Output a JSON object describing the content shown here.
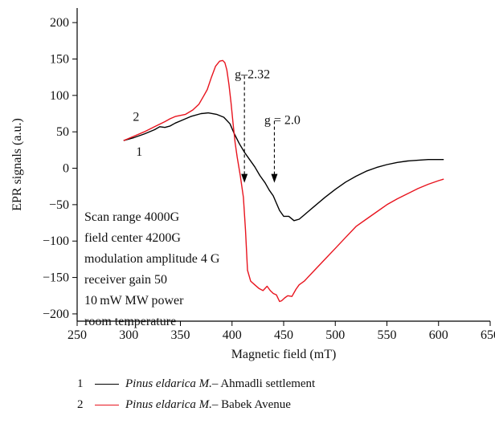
{
  "chart_data": {
    "type": "line",
    "xlabel": "Magnetic field (mT)",
    "ylabel": "EPR signals (a.u.)",
    "xlim": [
      250,
      650
    ],
    "ylim": [
      -210,
      220
    ],
    "xticks": [
      250,
      300,
      350,
      400,
      450,
      500,
      550,
      600,
      650
    ],
    "xtick_labels": [
      "250",
      "300",
      "350",
      "400",
      "450",
      "500",
      "550",
      "600",
      "650"
    ],
    "yticks": [
      200,
      150,
      100,
      50,
      0,
      -50,
      -100,
      -150,
      -200
    ],
    "ytick_labels": [
      "200",
      "150",
      "100",
      "50",
      "0",
      "−50",
      "−100",
      "−150",
      "−200"
    ],
    "series": [
      {
        "name": "1",
        "color": "#000000",
        "x": [
          295,
          305,
          315,
          325,
          330,
          335,
          340,
          345,
          350,
          360,
          370,
          377,
          385,
          392,
          398,
          402,
          407,
          412,
          417,
          422,
          427,
          432,
          436,
          440,
          443,
          446,
          450,
          455,
          460,
          465,
          470,
          480,
          490,
          500,
          510,
          520,
          530,
          540,
          550,
          560,
          570,
          580,
          590,
          600,
          605
        ],
        "y": [
          38,
          42,
          47,
          53,
          57,
          56,
          58,
          62,
          65,
          71,
          75,
          76,
          74,
          70,
          61,
          48,
          34,
          22,
          12,
          2,
          -10,
          -20,
          -30,
          -38,
          -48,
          -58,
          -66,
          -66,
          -72,
          -70,
          -64,
          -52,
          -40,
          -29,
          -19,
          -11,
          -4,
          1,
          5,
          8,
          10,
          11,
          12,
          12,
          12
        ]
      },
      {
        "name": "2",
        "color": "#e8141e",
        "x": [
          295,
          305,
          315,
          325,
          335,
          340,
          345,
          355,
          362,
          368,
          372,
          376,
          380,
          384,
          388,
          391,
          393,
          395,
          397,
          399,
          401,
          403,
          405,
          408,
          411,
          413,
          415,
          418,
          422,
          426,
          430,
          434,
          437,
          440,
          443,
          446,
          448,
          451,
          454,
          458,
          462,
          465,
          470,
          480,
          490,
          500,
          510,
          520,
          530,
          540,
          550,
          560,
          570,
          580,
          590,
          600,
          605
        ],
        "y": [
          38,
          44,
          50,
          57,
          64,
          68,
          71,
          74,
          80,
          88,
          98,
          108,
          125,
          140,
          147,
          148,
          145,
          135,
          115,
          90,
          62,
          35,
          15,
          -10,
          -40,
          -85,
          -140,
          -155,
          -160,
          -165,
          -168,
          -162,
          -168,
          -172,
          -174,
          -183,
          -182,
          -178,
          -175,
          -176,
          -166,
          -160,
          -155,
          -140,
          -125,
          -110,
          -95,
          -80,
          -70,
          -60,
          -50,
          -42,
          -35,
          -28,
          -22,
          -17,
          -15
        ]
      }
    ],
    "annotations": {
      "curve_label_1": "1",
      "curve_label_2": "2",
      "g1_label": "g–2.32",
      "g2_label": "g = 2.0",
      "g1_x": 412,
      "g2_x": 441,
      "g1_y_start": 127,
      "g1_y_end": -20,
      "g2_y_start": 65,
      "g2_y_end": -20
    },
    "info_box": [
      "Scan range 4000G",
      "field center 4200G",
      "modulation amplitude 4 G",
      "receiver gain 50",
      "10 mW MW power",
      "room temperature"
    ]
  },
  "legend": [
    {
      "number": "1",
      "species": "Pinus eldarica M.",
      "location": " – Ahmadli settlement",
      "color": "#000000"
    },
    {
      "number": "2",
      "species": "Pinus eldarica M.",
      "location": " – Babek Avenue",
      "color": "#e8141e"
    }
  ]
}
